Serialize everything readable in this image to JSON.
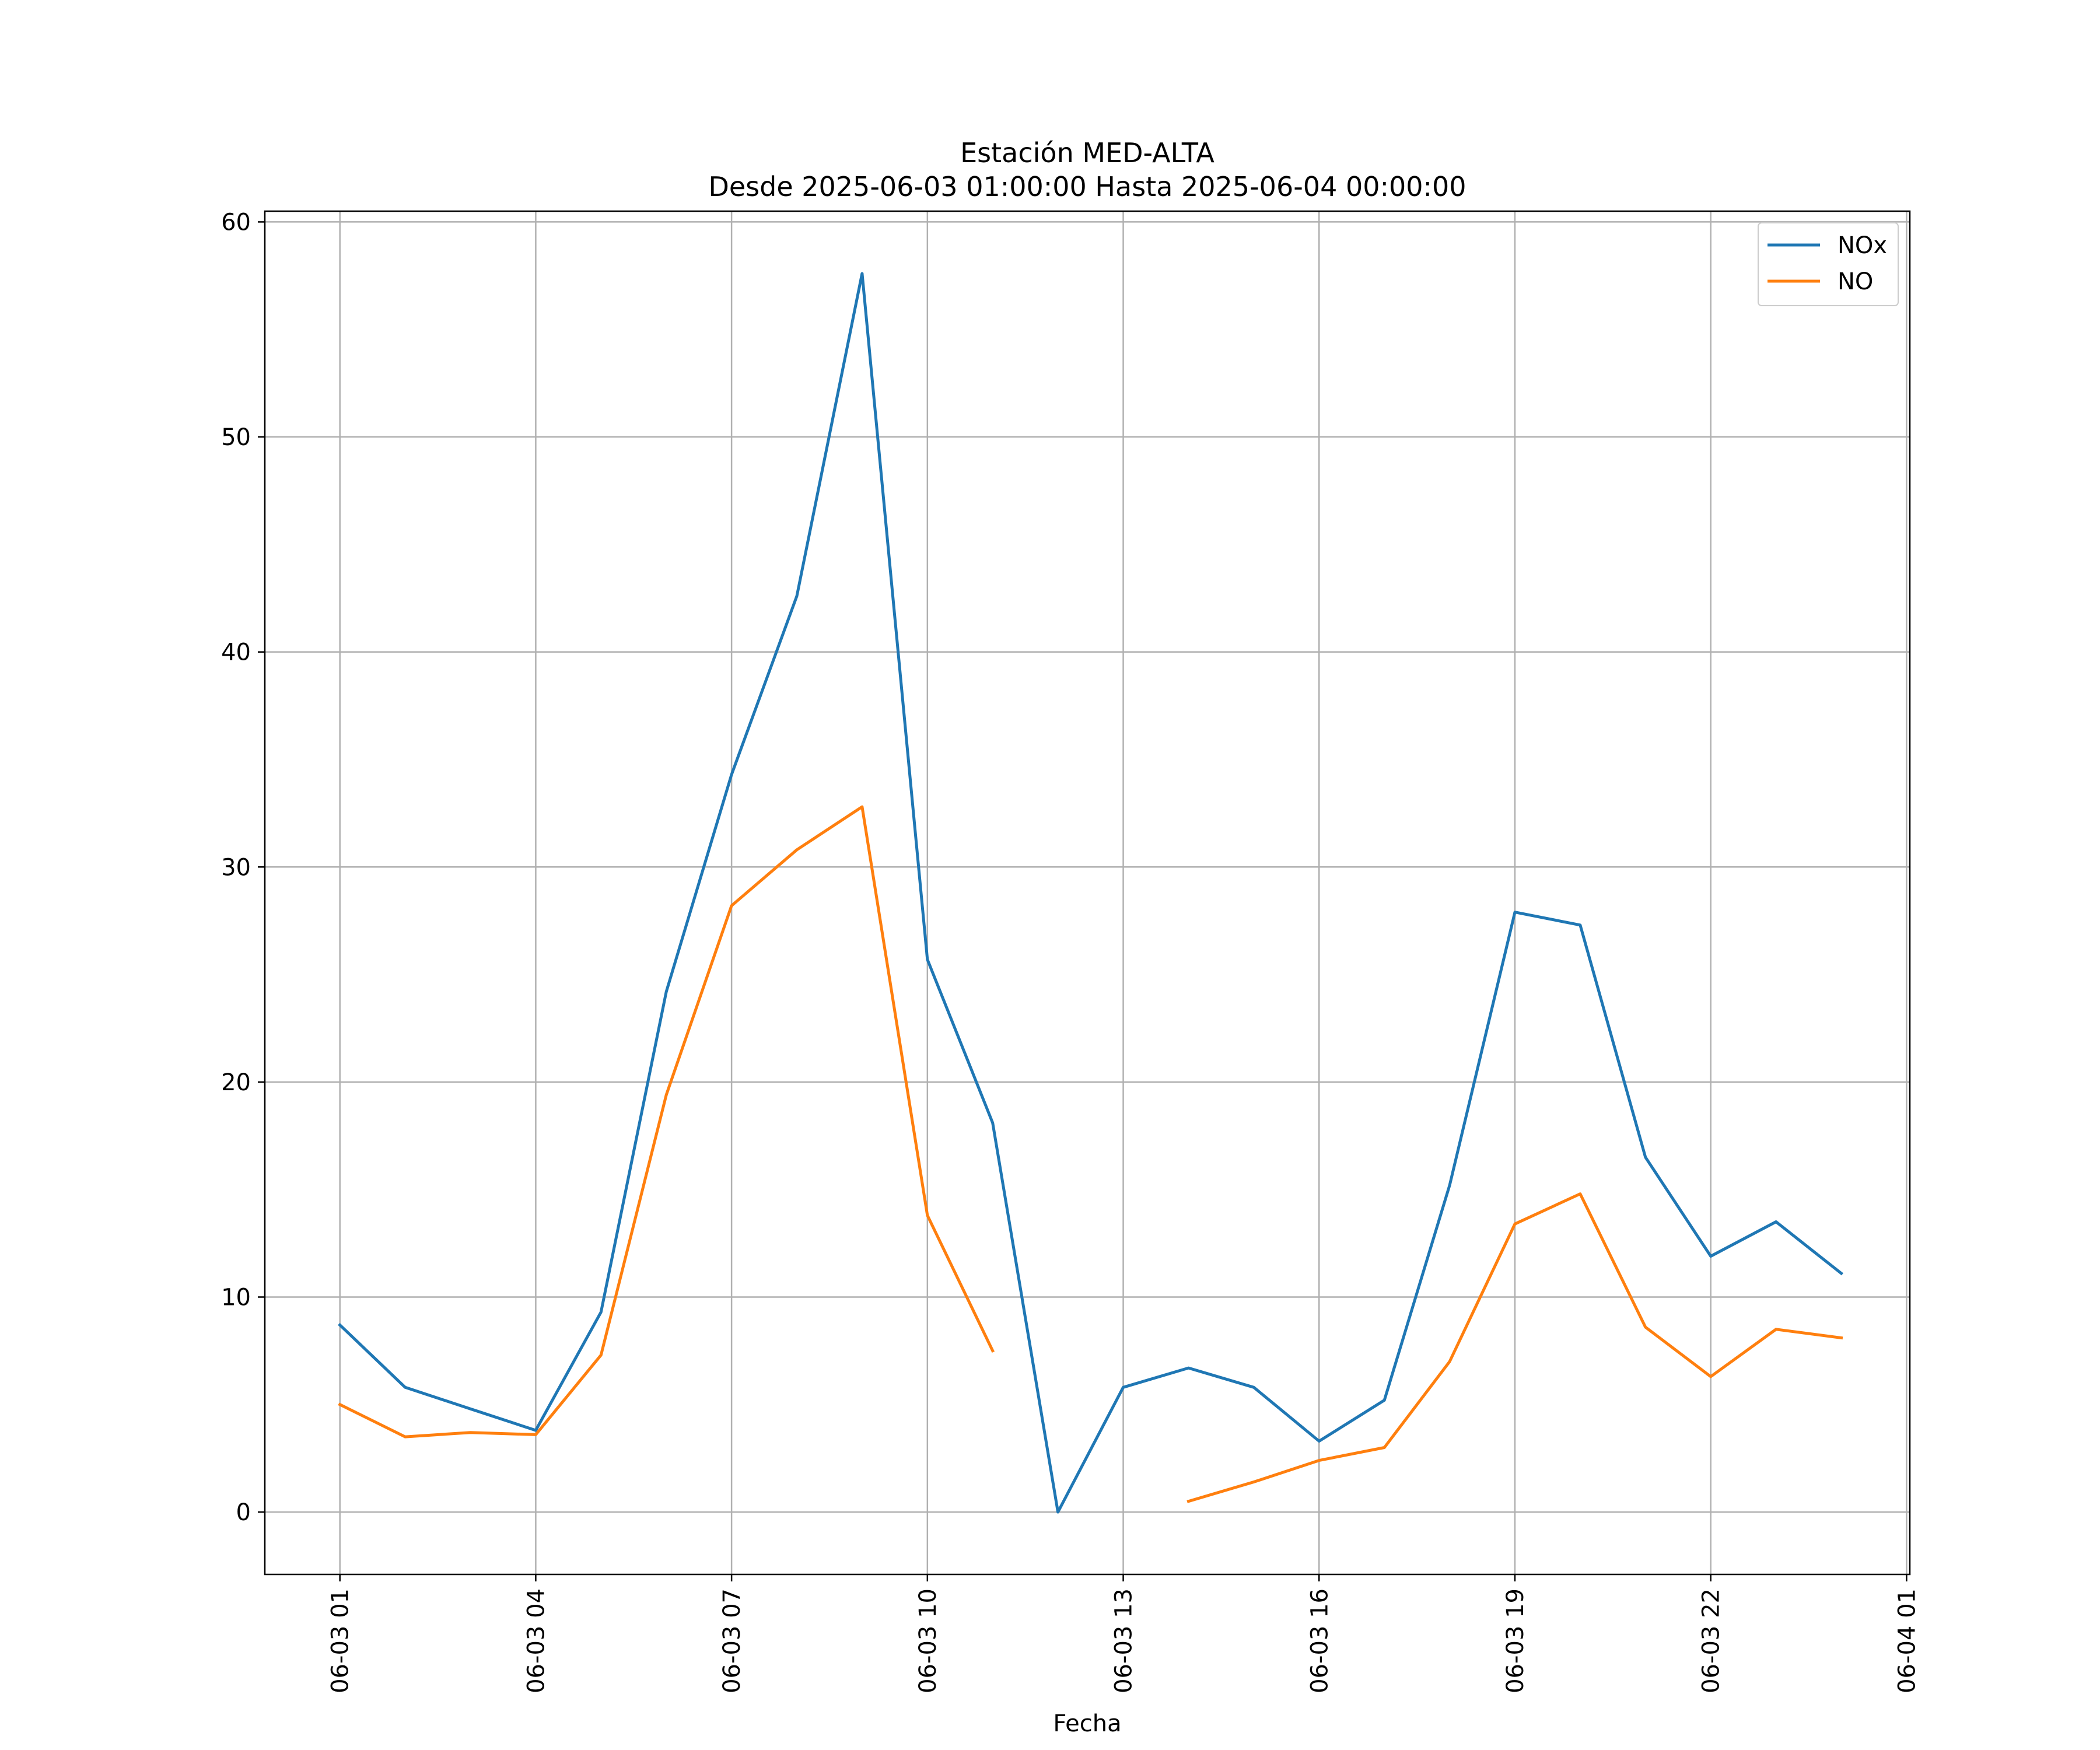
{
  "chart_data": {
    "type": "line",
    "title": "Estación MED-ALTA",
    "subtitle": "Desde 2025-06-03 01:00:00 Hasta 2025-06-04 00:00:00",
    "xlabel": "Fecha",
    "ylabel": "",
    "x": [
      "01",
      "02",
      "03",
      "04",
      "05",
      "06",
      "07",
      "08",
      "09",
      "10",
      "11",
      "12",
      "13",
      "14",
      "15",
      "16",
      "17",
      "18",
      "19",
      "20",
      "21",
      "22",
      "23",
      "24"
    ],
    "x_tick_labels": [
      "06-03 01",
      "06-03 04",
      "06-03 07",
      "06-03 10",
      "06-03 13",
      "06-03 16",
      "06-03 19",
      "06-03 22",
      "06-04 01"
    ],
    "y_ticks": [
      "0",
      "10",
      "20",
      "30",
      "40",
      "50",
      "60"
    ],
    "ylim": [
      -2.9,
      60.5
    ],
    "xlim": [
      -1.15,
      24.05
    ],
    "grid": true,
    "legend_position": "top-right",
    "series": [
      {
        "name": "NOx",
        "color": "#1f77b4",
        "values": [
          8.7,
          5.8,
          4.8,
          3.8,
          9.3,
          24.2,
          34.3,
          42.6,
          57.6,
          25.7,
          18.1,
          0.0,
          5.8,
          6.7,
          5.8,
          3.3,
          5.2,
          15.2,
          27.9,
          27.3,
          16.5,
          11.9,
          13.5,
          11.1
        ]
      },
      {
        "name": "NO",
        "color": "#ff7f0e",
        "values": [
          5.0,
          3.5,
          3.7,
          3.6,
          7.3,
          19.4,
          28.2,
          30.8,
          32.8,
          13.8,
          7.5,
          null,
          null,
          0.5,
          1.4,
          2.4,
          3.0,
          7.0,
          13.4,
          14.8,
          8.6,
          6.3,
          8.5,
          8.1
        ]
      }
    ]
  }
}
